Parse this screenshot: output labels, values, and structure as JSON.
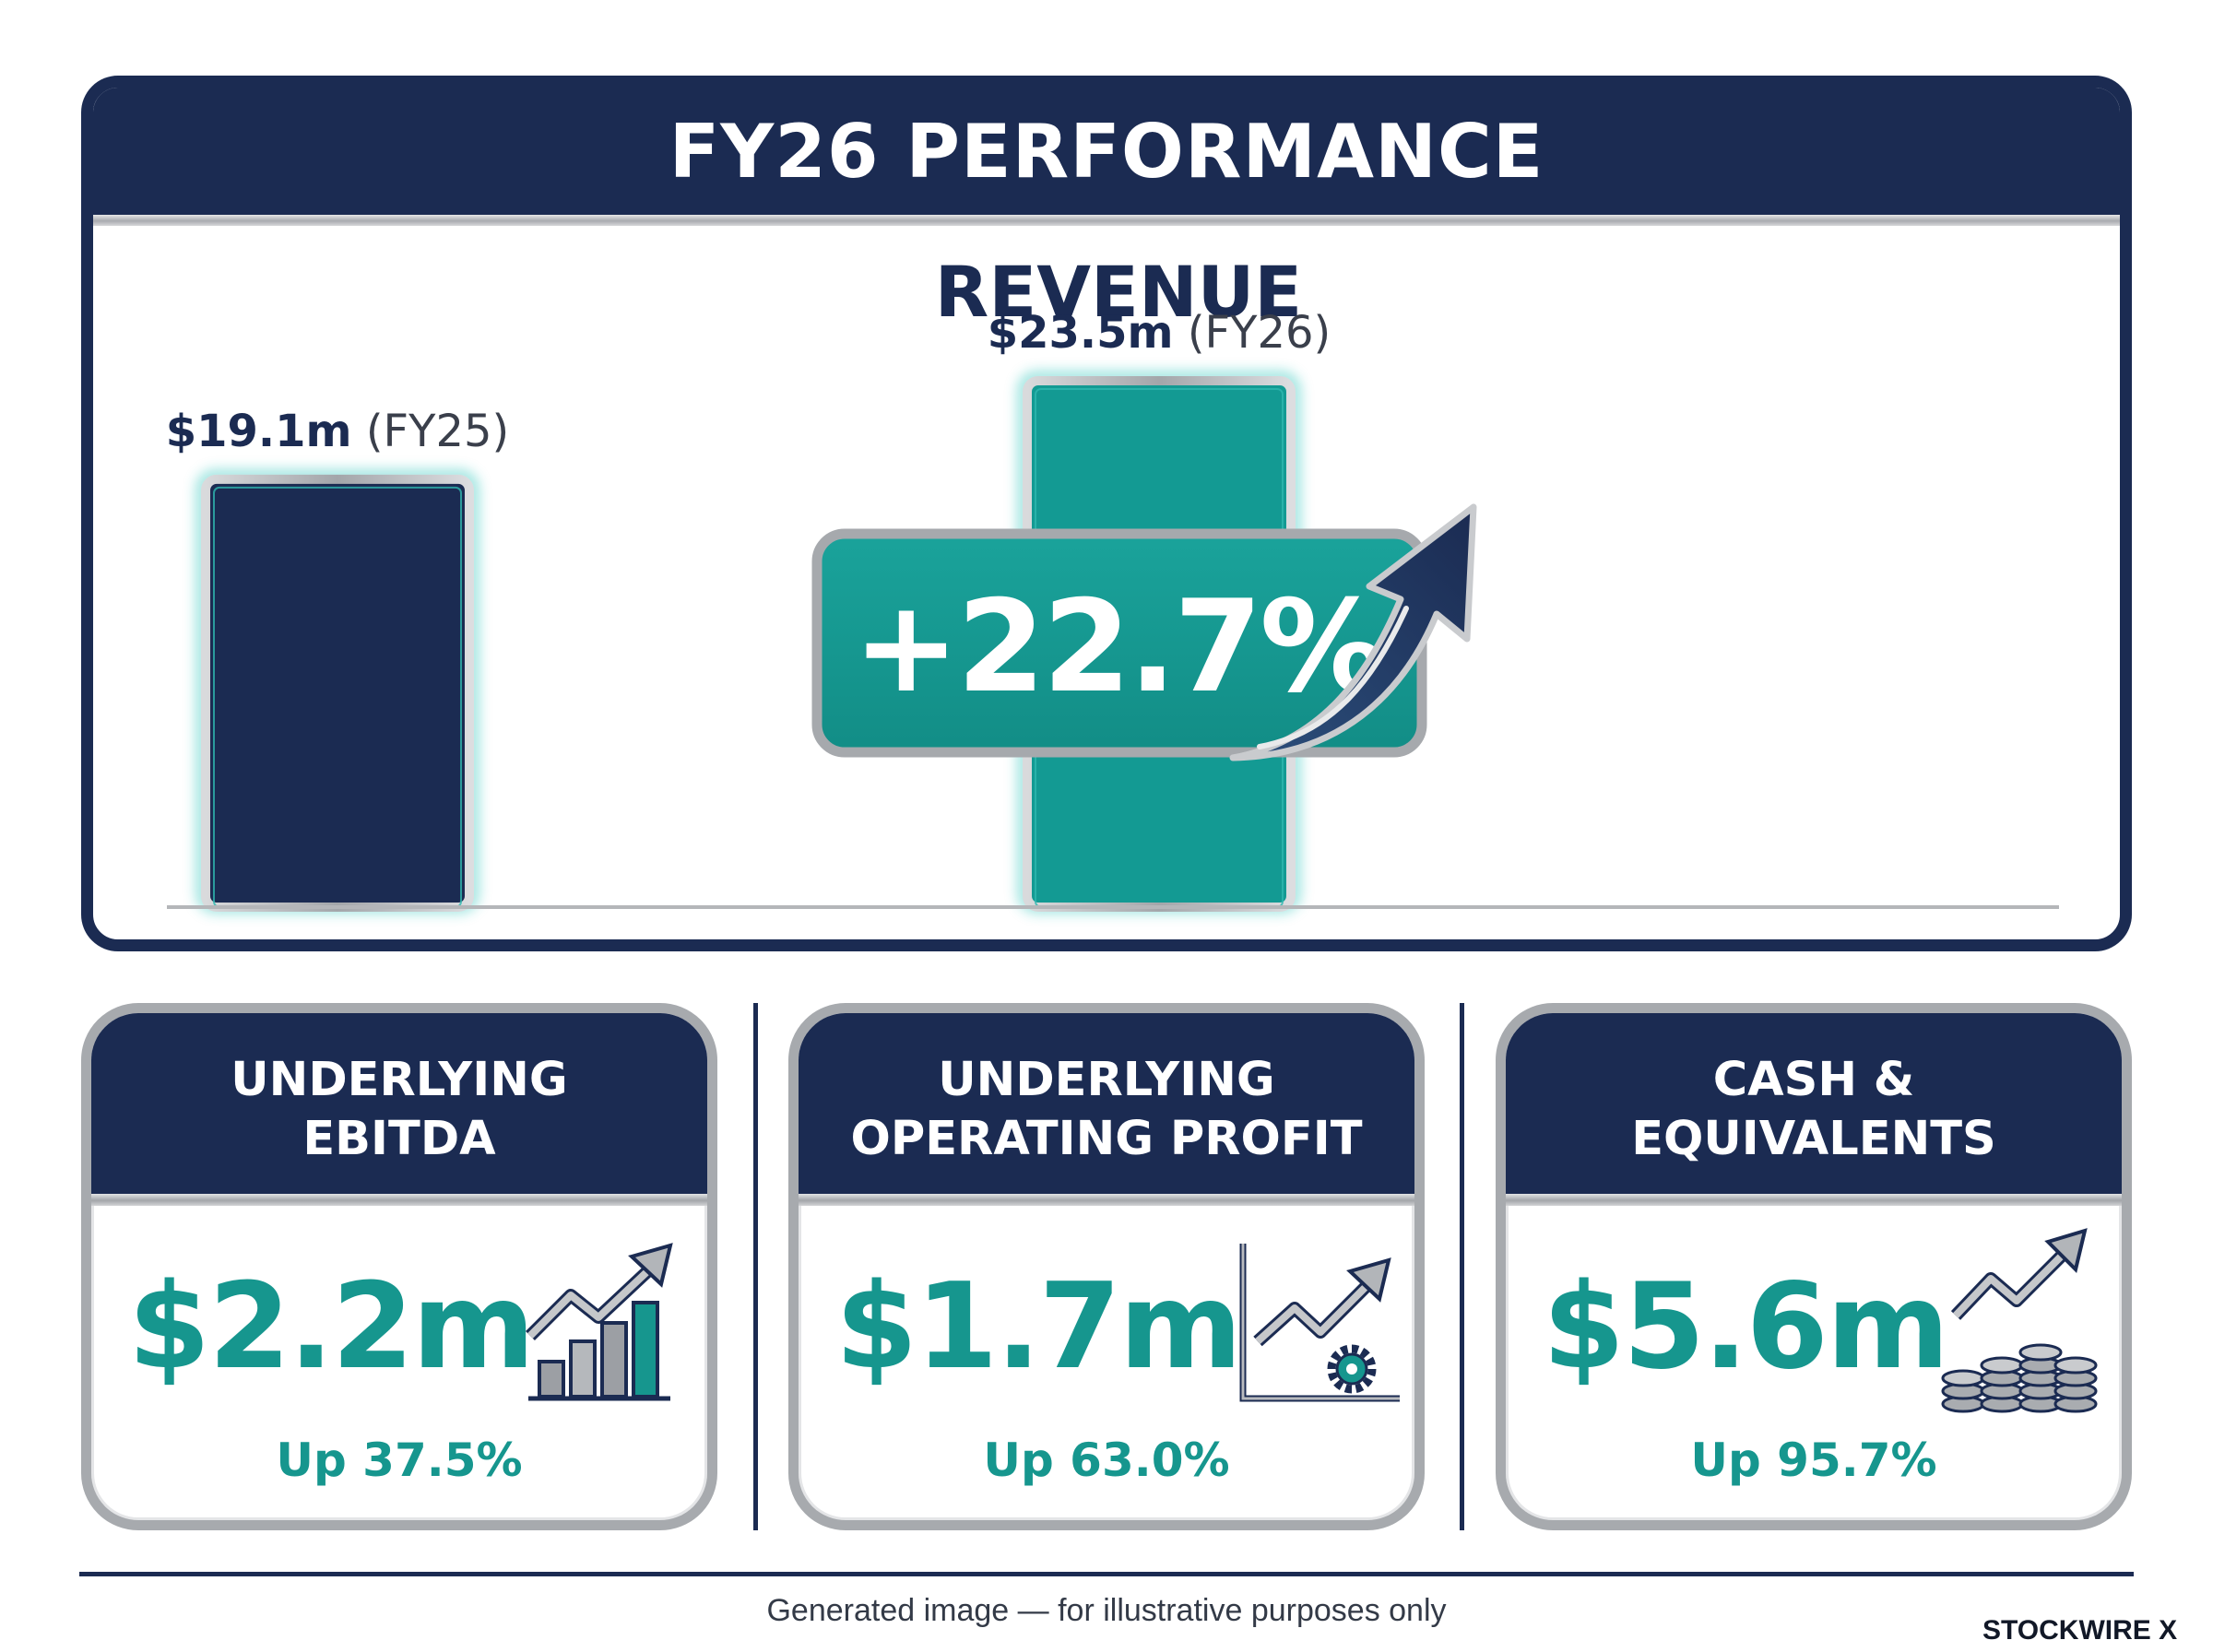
{
  "header": {
    "title": "FY26 PERFORMANCE"
  },
  "chart_data": {
    "type": "bar",
    "title": "REVENUE",
    "categories": [
      "FY25",
      "FY26"
    ],
    "values": [
      19.1,
      23.5
    ],
    "value_labels": [
      "$19.1m",
      "$23.5m"
    ],
    "category_labels": [
      "(FY25)",
      "(FY26)"
    ],
    "unit": "$m",
    "colors": [
      "#1b2b52",
      "#139a93"
    ],
    "growth_label": "+22.7%",
    "grid": false
  },
  "metrics": [
    {
      "title_line1": "UNDERLYING",
      "title_line2": "EBITDA",
      "value": "$2.2m",
      "change": "Up 37.5%",
      "icon": "bar-chart-up-icon"
    },
    {
      "title_line1": "UNDERLYING",
      "title_line2": "OPERATING PROFIT",
      "value": "$1.7m",
      "change": "Up 63.0%",
      "icon": "line-chart-gear-icon"
    },
    {
      "title_line1": "CASH &",
      "title_line2": "EQUIVALENTS",
      "value": "$5.6m",
      "change": "Up 95.7%",
      "icon": "coins-growth-icon"
    }
  ],
  "footer": {
    "note": "Generated image — for illustrative purposes only",
    "brand": "STOCKWIRE X"
  },
  "colors": {
    "navy": "#1b2b52",
    "teal": "#139a93",
    "silver": "#a7aaae"
  }
}
